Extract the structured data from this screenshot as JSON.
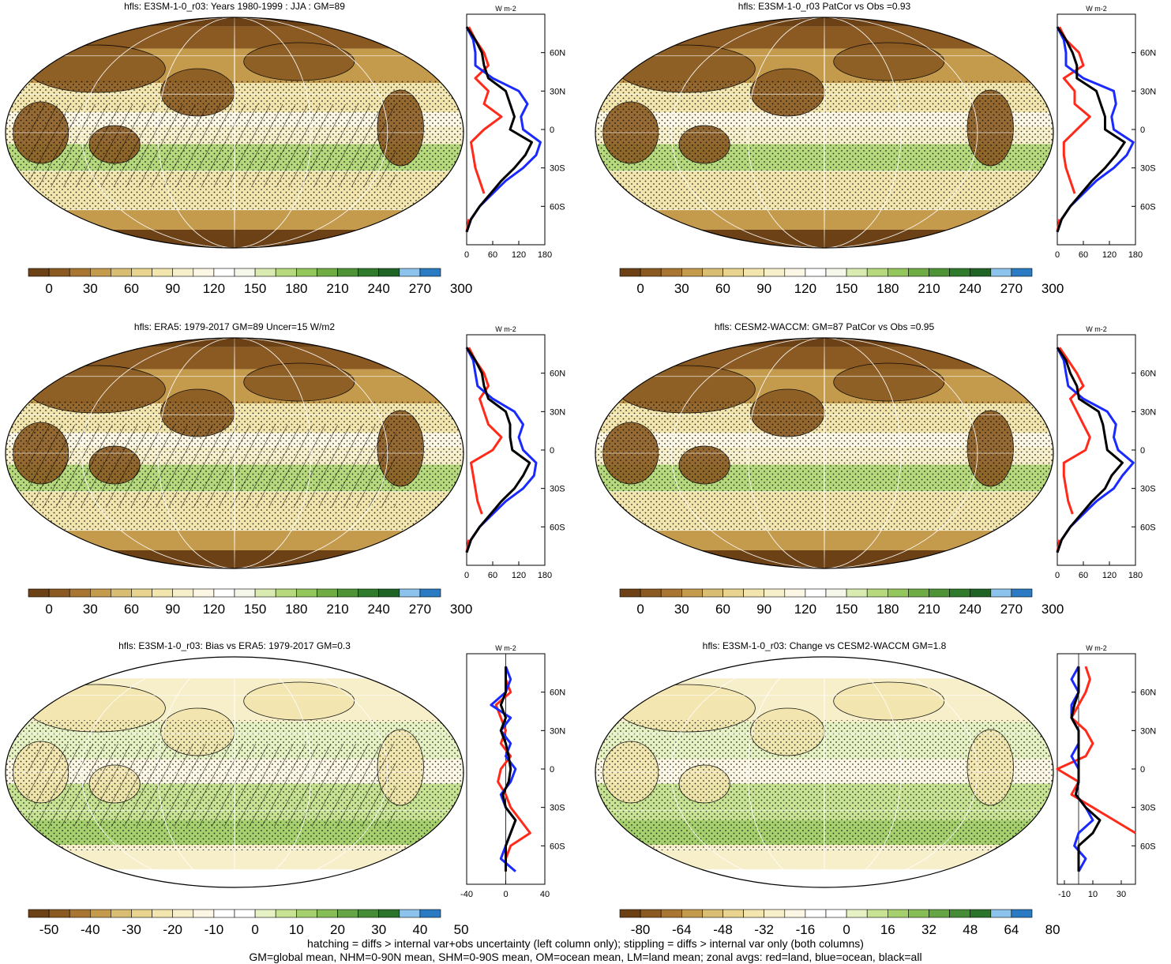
{
  "footer": {
    "line1": "hatching = diffs > internal var+obs uncertainty (left column only); stippling = diffs > internal var only (both columns)",
    "line2": "GM=global mean, NHM=0-90N mean, SHM=0-90S mean, OM=ocean mean, LM=land mean; zonal avgs: red=land, blue=ocean, black=all"
  },
  "colors": {
    "land": "#ff2a1a",
    "ocean": "#1a2aff",
    "all": "#000000",
    "abs_scale": [
      "#6b4115",
      "#8a5a22",
      "#a87632",
      "#c49a4c",
      "#d9bd72",
      "#e8d48f",
      "#f2e5ad",
      "#f7efca",
      "#fbf7e4",
      "#ffffff",
      "#f4f7ea",
      "#d9ebb0",
      "#b5d97c",
      "#93c65b",
      "#6fad44",
      "#4e9436",
      "#2f7a2b",
      "#1f6424",
      "#8cc3ec",
      "#2a7bc4"
    ],
    "diff_scale": [
      "#6b4115",
      "#8a5a22",
      "#a87632",
      "#c49a4c",
      "#d9bd72",
      "#e8d48f",
      "#f2e5ad",
      "#f7efca",
      "#fbf7e4",
      "#ffffff",
      "#ffffff",
      "#e6f2c4",
      "#c6e292",
      "#a6d06e",
      "#86bd55",
      "#65a545",
      "#468c37",
      "#2c732c",
      "#8cc3ec",
      "#2a7bc4"
    ]
  },
  "chart_data": [
    {
      "type": "heatmap",
      "id": "p1",
      "title": "hfls: E3SM-1-0_r03: Years 1980-1999 : JJA : GM=89",
      "colorbar_ticks": [
        "0",
        "30",
        "60",
        "90",
        "120",
        "150",
        "180",
        "210",
        "240",
        "270",
        "300"
      ],
      "scale": "abs",
      "hatching": true,
      "stippling": true,
      "zonal": {
        "unit": "W m-2",
        "xlim": [
          0,
          180
        ],
        "xticks": [
          "0",
          "60",
          "120",
          "180"
        ],
        "ylim": [
          -90,
          90
        ],
        "yticks": [
          "60N",
          "30N",
          "0",
          "30S",
          "60S"
        ],
        "ytick_values": [
          60,
          30,
          0,
          -30,
          -60
        ],
        "series": [
          {
            "name": "land",
            "lat": [
              80,
              70,
              60,
              50,
              40,
              30,
              20,
              10,
              0,
              -10,
              -20,
              -30,
              -40,
              -50,
              -60,
              -70,
              -80
            ],
            "values": [
              5,
              20,
              40,
              50,
              20,
              50,
              40,
              80,
              40,
              10,
              15,
              20,
              30,
              40,
              null,
              5,
              0
            ]
          },
          {
            "name": "ocean",
            "lat": [
              80,
              70,
              60,
              50,
              40,
              30,
              20,
              10,
              0,
              -10,
              -20,
              -30,
              -40,
              -50,
              -60,
              -70,
              -80
            ],
            "values": [
              0,
              15,
              20,
              20,
              60,
              120,
              140,
              125,
              130,
              170,
              160,
              130,
              90,
              60,
              30,
              10,
              0
            ]
          },
          {
            "name": "all",
            "lat": [
              80,
              70,
              60,
              50,
              40,
              30,
              20,
              10,
              0,
              -10,
              -20,
              -30,
              -40,
              -50,
              -60,
              -70,
              -80
            ],
            "values": [
              0,
              20,
              35,
              40,
              50,
              90,
              100,
              110,
              100,
              150,
              135,
              110,
              80,
              55,
              30,
              10,
              0
            ]
          }
        ]
      }
    },
    {
      "type": "heatmap",
      "id": "p2",
      "title": "hfls: E3SM-1-0_r03 PatCor vs Obs =0.93",
      "colorbar_ticks": [
        "0",
        "30",
        "60",
        "90",
        "120",
        "150",
        "180",
        "210",
        "240",
        "270",
        "300"
      ],
      "scale": "abs",
      "hatching": false,
      "stippling": true,
      "zonal": {
        "unit": "W m-2",
        "xlim": [
          0,
          180
        ],
        "xticks": [
          "0",
          "60",
          "120",
          "180"
        ],
        "ylim": [
          -90,
          90
        ],
        "yticks": [
          "60N",
          "30N",
          "0",
          "30S",
          "60S"
        ],
        "ytick_values": [
          60,
          30,
          0,
          -30,
          -60
        ],
        "series": [
          {
            "name": "land",
            "lat": [
              80,
              70,
              60,
              50,
              40,
              30,
              20,
              10,
              0,
              -10,
              -20,
              -30,
              -40,
              -50,
              -60,
              -70,
              -80
            ],
            "values": [
              5,
              20,
              50,
              60,
              15,
              40,
              40,
              75,
              45,
              15,
              15,
              20,
              30,
              40,
              null,
              5,
              0
            ]
          },
          {
            "name": "ocean",
            "lat": [
              80,
              70,
              60,
              50,
              40,
              30,
              20,
              10,
              0,
              -10,
              -20,
              -30,
              -40,
              -50,
              -60,
              -70,
              -80
            ],
            "values": [
              0,
              15,
              20,
              20,
              60,
              130,
              135,
              125,
              130,
              175,
              160,
              130,
              90,
              60,
              30,
              10,
              0
            ]
          },
          {
            "name": "all",
            "lat": [
              80,
              70,
              60,
              50,
              40,
              30,
              20,
              10,
              0,
              -10,
              -20,
              -30,
              -40,
              -50,
              -60,
              -70,
              -80
            ],
            "values": [
              0,
              20,
              35,
              45,
              45,
              90,
              100,
              110,
              110,
              155,
              135,
              110,
              80,
              55,
              30,
              10,
              0
            ]
          }
        ]
      }
    },
    {
      "type": "heatmap",
      "id": "p3",
      "title": "hfls: ERA5: 1979-2017 GM=89 Uncer=15 W/m2",
      "colorbar_ticks": [
        "0",
        "30",
        "60",
        "90",
        "120",
        "150",
        "180",
        "210",
        "240",
        "270",
        "300"
      ],
      "scale": "abs",
      "hatching": true,
      "stippling": true,
      "zonal": {
        "unit": "W m-2",
        "xlim": [
          0,
          180
        ],
        "xticks": [
          "0",
          "60",
          "120",
          "180"
        ],
        "ylim": [
          -90,
          90
        ],
        "yticks": [
          "60N",
          "30N",
          "0",
          "30S",
          "60S"
        ],
        "ytick_values": [
          60,
          30,
          0,
          -30,
          -60
        ],
        "series": [
          {
            "name": "land",
            "lat": [
              80,
              70,
              60,
              50,
              40,
              30,
              20,
              10,
              0,
              -10,
              -20,
              -30,
              -40,
              -50,
              -60,
              -70,
              -80
            ],
            "values": [
              5,
              20,
              40,
              50,
              30,
              40,
              50,
              80,
              60,
              10,
              15,
              20,
              25,
              35,
              null,
              5,
              0
            ]
          },
          {
            "name": "ocean",
            "lat": [
              80,
              70,
              60,
              50,
              40,
              30,
              20,
              10,
              0,
              -10,
              -20,
              -30,
              -40,
              -50,
              -60,
              -70,
              -80
            ],
            "values": [
              0,
              15,
              20,
              25,
              60,
              110,
              130,
              120,
              130,
              160,
              155,
              130,
              90,
              60,
              30,
              10,
              0
            ]
          },
          {
            "name": "all",
            "lat": [
              80,
              70,
              60,
              50,
              40,
              30,
              20,
              10,
              0,
              -10,
              -20,
              -30,
              -40,
              -50,
              -60,
              -70,
              -80
            ],
            "values": [
              0,
              20,
              35,
              40,
              50,
              90,
              100,
              100,
              105,
              145,
              130,
              110,
              80,
              55,
              30,
              10,
              0
            ]
          }
        ]
      }
    },
    {
      "type": "heatmap",
      "id": "p4",
      "title": "hfls: CESM2-WACCM: GM=87 PatCor vs Obs =0.95",
      "colorbar_ticks": [
        "0",
        "30",
        "60",
        "90",
        "120",
        "150",
        "180",
        "210",
        "240",
        "270",
        "300"
      ],
      "scale": "abs",
      "hatching": false,
      "stippling": true,
      "zonal": {
        "unit": "W m-2",
        "xlim": [
          0,
          180
        ],
        "xticks": [
          "0",
          "60",
          "120",
          "180"
        ],
        "ylim": [
          -90,
          90
        ],
        "yticks": [
          "60N",
          "30N",
          "0",
          "30S",
          "60S"
        ],
        "ytick_values": [
          60,
          30,
          0,
          -30,
          -60
        ],
        "series": [
          {
            "name": "land",
            "lat": [
              80,
              70,
              60,
              50,
              40,
              30,
              20,
              10,
              0,
              -10,
              -20,
              -30,
              -40,
              -50,
              -60,
              -70,
              -80
            ],
            "values": [
              5,
              25,
              45,
              60,
              30,
              45,
              60,
              75,
              65,
              15,
              15,
              20,
              25,
              35,
              null,
              5,
              0
            ]
          },
          {
            "name": "ocean",
            "lat": [
              80,
              70,
              60,
              50,
              40,
              30,
              20,
              10,
              0,
              -10,
              -20,
              -30,
              -40,
              -50,
              -60,
              -70,
              -80
            ],
            "values": [
              0,
              15,
              20,
              25,
              60,
              115,
              135,
              130,
              140,
              175,
              150,
              130,
              90,
              60,
              30,
              10,
              0
            ]
          },
          {
            "name": "all",
            "lat": [
              80,
              70,
              60,
              50,
              40,
              30,
              20,
              10,
              0,
              -10,
              -20,
              -30,
              -40,
              -50,
              -60,
              -70,
              -80
            ],
            "values": [
              0,
              20,
              30,
              45,
              50,
              95,
              105,
              110,
              115,
              150,
              125,
              110,
              80,
              55,
              30,
              10,
              0
            ]
          }
        ]
      }
    },
    {
      "type": "heatmap",
      "id": "p5",
      "title": "hfls: E3SM-1-0_r03: Bias vs ERA5: 1979-2017 GM=0.3",
      "colorbar_ticks": [
        "-50",
        "-40",
        "-30",
        "-20",
        "-10",
        "0",
        "10",
        "20",
        "30",
        "40",
        "50"
      ],
      "scale": "diff",
      "hatching": true,
      "stippling": true,
      "zonal": {
        "unit": "W m-2",
        "xlim": [
          -40,
          40
        ],
        "xticks": [
          "-40",
          "0",
          "40"
        ],
        "zero_line": 0,
        "ylim": [
          -90,
          90
        ],
        "yticks": [
          "60N",
          "30N",
          "0",
          "30S",
          "60S"
        ],
        "ytick_values": [
          60,
          30,
          0,
          -30,
          -60
        ],
        "series": [
          {
            "name": "land",
            "lat": [
              80,
              70,
              60,
              50,
              40,
              30,
              20,
              10,
              0,
              -10,
              -20,
              -30,
              -40,
              -50,
              -60,
              -70,
              -80
            ],
            "values": [
              0,
              0,
              5,
              -10,
              -5,
              0,
              -5,
              5,
              -5,
              -8,
              0,
              5,
              15,
              25,
              5,
              0,
              0
            ]
          },
          {
            "name": "ocean",
            "lat": [
              80,
              70,
              60,
              50,
              40,
              30,
              20,
              10,
              0,
              -10,
              -20,
              -30,
              -40,
              -50,
              -60,
              -70,
              -80
            ],
            "values": [
              0,
              5,
              0,
              -15,
              5,
              -5,
              5,
              0,
              10,
              5,
              -5,
              0,
              10,
              5,
              0,
              -5,
              10
            ]
          },
          {
            "name": "all",
            "lat": [
              80,
              70,
              60,
              50,
              40,
              30,
              20,
              10,
              0,
              -10,
              -20,
              -30,
              -40,
              -50,
              -60,
              -70,
              -80
            ],
            "values": [
              0,
              0,
              0,
              -5,
              0,
              -5,
              0,
              3,
              5,
              3,
              -3,
              0,
              10,
              5,
              0,
              0,
              0
            ]
          }
        ]
      }
    },
    {
      "type": "heatmap",
      "id": "p6",
      "title": "hfls: E3SM-1-0_r03: Change vs CESM2-WACCM GM=1.8",
      "colorbar_ticks": [
        "-80",
        "-64",
        "-48",
        "-32",
        "-16",
        "0",
        "16",
        "32",
        "48",
        "64",
        "80"
      ],
      "scale": "diff",
      "hatching": false,
      "stippling": true,
      "zonal": {
        "unit": "W m-2",
        "xlim": [
          -15,
          40
        ],
        "xticks": [
          "-10",
          "10",
          "30"
        ],
        "zero_line": 0,
        "ylim": [
          -90,
          90
        ],
        "yticks": [
          "60N",
          "30N",
          "0",
          "30S",
          "60S"
        ],
        "ytick_values": [
          60,
          30,
          0,
          -30,
          -60
        ],
        "series": [
          {
            "name": "land",
            "lat": [
              80,
              70,
              60,
              50,
              40,
              30,
              20,
              10,
              0,
              -10,
              -20,
              -30,
              -40,
              -50,
              -60,
              -70,
              -80
            ],
            "values": [
              5,
              8,
              5,
              0,
              -5,
              5,
              10,
              5,
              -15,
              0,
              -5,
              10,
              25,
              40,
              null,
              0,
              0
            ]
          },
          {
            "name": "ocean",
            "lat": [
              80,
              70,
              60,
              50,
              40,
              30,
              20,
              10,
              0,
              -10,
              -20,
              -30,
              -40,
              -50,
              -60,
              -70,
              -80
            ],
            "values": [
              0,
              -5,
              0,
              -5,
              -5,
              0,
              0,
              -5,
              0,
              0,
              -2,
              5,
              10,
              0,
              -3,
              5,
              0
            ]
          },
          {
            "name": "all",
            "lat": [
              80,
              70,
              60,
              50,
              40,
              30,
              20,
              10,
              0,
              -10,
              -20,
              -30,
              -40,
              -50,
              -60,
              -70,
              -80
            ],
            "values": [
              0,
              0,
              0,
              -3,
              -5,
              0,
              0,
              0,
              0,
              0,
              -2,
              5,
              15,
              10,
              0,
              0,
              0
            ]
          }
        ]
      }
    }
  ]
}
